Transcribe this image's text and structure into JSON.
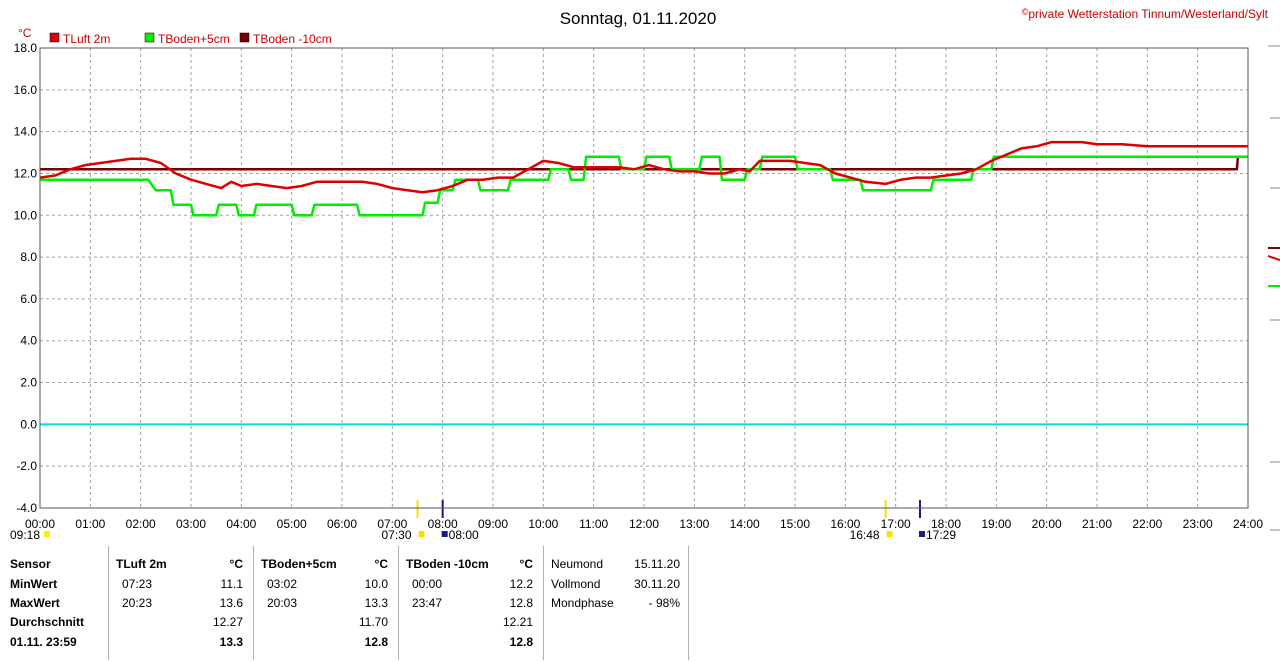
{
  "title": "Sonntag, 01.11.2020",
  "copyright_symbol": "©",
  "copyright": "private Wetterstation Tinnum/Westerland/Sylt",
  "chart_data": {
    "type": "line",
    "ylabel": "°C",
    "ylim": [
      -4,
      18
    ],
    "yticks": [
      "18.0",
      "16.0",
      "14.0",
      "12.0",
      "10.0",
      "8.0",
      "6.0",
      "4.0",
      "2.0",
      "0.0",
      "-2.0",
      "-4.0"
    ],
    "xlim": [
      0,
      24
    ],
    "xticks": [
      "00:00",
      "01:00",
      "02:00",
      "03:00",
      "04:00",
      "05:00",
      "06:00",
      "07:00",
      "08:00",
      "09:00",
      "10:00",
      "11:00",
      "12:00",
      "13:00",
      "14:00",
      "15:00",
      "16:00",
      "17:00",
      "18:00",
      "19:00",
      "20:00",
      "21:00",
      "22:00",
      "23:00",
      "24:00"
    ],
    "grid": true,
    "legend_position": "top-left",
    "zero_line_color": "#00dddd",
    "series": [
      {
        "name": "TLuft 2m",
        "color": "#dd0000",
        "x": [
          0,
          0.3,
          0.6,
          0.9,
          1.2,
          1.5,
          1.8,
          2.1,
          2.4,
          2.7,
          3.0,
          3.3,
          3.6,
          3.8,
          4.0,
          4.3,
          4.6,
          4.9,
          5.2,
          5.5,
          5.8,
          6.1,
          6.4,
          6.7,
          7.0,
          7.3,
          7.6,
          7.9,
          8.2,
          8.5,
          8.8,
          9.1,
          9.4,
          9.7,
          10.0,
          10.3,
          10.6,
          10.9,
          11.2,
          11.5,
          11.8,
          12.1,
          12.4,
          12.7,
          13.0,
          13.3,
          13.6,
          13.9,
          14.1,
          14.3,
          14.6,
          14.9,
          15.2,
          15.5,
          15.8,
          16.1,
          16.4,
          16.8,
          17.1,
          17.4,
          17.7,
          18.0,
          18.3,
          18.6,
          18.9,
          19.2,
          19.5,
          19.8,
          20.1,
          20.4,
          20.7,
          21.0,
          21.5,
          22.0,
          22.5,
          23.0,
          23.5,
          24.0
        ],
        "y": [
          11.8,
          11.9,
          12.2,
          12.4,
          12.5,
          12.6,
          12.7,
          12.7,
          12.5,
          12.0,
          11.7,
          11.5,
          11.3,
          11.6,
          11.4,
          11.5,
          11.4,
          11.3,
          11.4,
          11.6,
          11.6,
          11.6,
          11.6,
          11.5,
          11.3,
          11.2,
          11.1,
          11.2,
          11.4,
          11.7,
          11.7,
          11.8,
          11.8,
          12.2,
          12.6,
          12.5,
          12.3,
          12.3,
          12.3,
          12.3,
          12.2,
          12.4,
          12.2,
          12.1,
          12.1,
          12.0,
          12.0,
          12.2,
          12.1,
          12.6,
          12.6,
          12.6,
          12.5,
          12.4,
          12.0,
          11.8,
          11.6,
          11.5,
          11.7,
          11.8,
          11.8,
          11.9,
          12.0,
          12.2,
          12.6,
          12.9,
          13.2,
          13.3,
          13.5,
          13.5,
          13.5,
          13.4,
          13.4,
          13.3,
          13.3,
          13.3,
          13.3,
          13.3
        ]
      },
      {
        "name": "TBoden+5cm",
        "color": "#00ee00",
        "x": [
          0,
          0.7,
          0.72,
          1.05,
          1.07,
          2.1,
          2.15,
          2.3,
          2.35,
          2.6,
          2.65,
          3.0,
          3.05,
          3.5,
          3.55,
          3.9,
          3.95,
          4.25,
          4.3,
          5.0,
          5.05,
          5.4,
          5.45,
          6.3,
          6.35,
          6.9,
          6.95,
          7.6,
          7.65,
          7.9,
          7.95,
          8.2,
          8.25,
          8.7,
          8.75,
          9.3,
          9.35,
          10.1,
          10.15,
          10.5,
          10.55,
          10.8,
          10.85,
          11.5,
          11.55,
          12.0,
          12.05,
          12.5,
          12.55,
          13.1,
          13.15,
          13.5,
          13.55,
          14.0,
          14.05,
          14.3,
          14.35,
          15.0,
          15.05,
          15.7,
          15.75,
          16.3,
          16.35,
          16.8,
          16.85,
          17.7,
          17.75,
          18.5,
          18.55,
          18.9,
          18.95,
          19.9,
          19.95,
          24.0
        ],
        "y": [
          11.7,
          11.7,
          11.7,
          11.7,
          11.7,
          11.7,
          11.7,
          11.2,
          11.2,
          11.2,
          10.5,
          10.5,
          10.0,
          10.0,
          10.5,
          10.5,
          10.0,
          10.0,
          10.5,
          10.5,
          10.0,
          10.0,
          10.5,
          10.5,
          10.0,
          10.0,
          10.0,
          10.0,
          10.6,
          10.6,
          11.2,
          11.2,
          11.7,
          11.7,
          11.2,
          11.2,
          11.7,
          11.7,
          12.2,
          12.2,
          11.7,
          11.7,
          12.8,
          12.8,
          12.2,
          12.2,
          12.8,
          12.8,
          12.2,
          12.2,
          12.8,
          12.8,
          11.7,
          11.7,
          12.2,
          12.2,
          12.8,
          12.8,
          12.2,
          12.2,
          11.7,
          11.7,
          11.2,
          11.2,
          11.2,
          11.2,
          11.7,
          11.7,
          12.2,
          12.2,
          12.8,
          12.8,
          12.8,
          12.8
        ]
      },
      {
        "name": "TBoden -10cm",
        "color": "#7a0000",
        "x": [
          0,
          1,
          2,
          3,
          4,
          5,
          6,
          7,
          8,
          9,
          10,
          11,
          12,
          13,
          14,
          15,
          16,
          17,
          18,
          19,
          20,
          21,
          22,
          23,
          23.78,
          23.8,
          24.0
        ],
        "y": [
          12.2,
          12.2,
          12.2,
          12.2,
          12.2,
          12.2,
          12.2,
          12.2,
          12.2,
          12.2,
          12.2,
          12.2,
          12.2,
          12.2,
          12.2,
          12.2,
          12.2,
          12.2,
          12.2,
          12.2,
          12.2,
          12.2,
          12.2,
          12.2,
          12.2,
          12.8,
          12.8
        ]
      }
    ],
    "sun_moon_markers": [
      "09:18",
      "07:30",
      "08:00",
      "16:48",
      "17:29"
    ]
  },
  "table": {
    "sensor": {
      "header": "Sensor",
      "min": "MinWert",
      "max": "MaxWert",
      "avg": "Durchschnitt",
      "now": "01.11. 23:59"
    },
    "tluft": {
      "header": "TLuft 2m",
      "unit": "°C",
      "min_time": "07:23",
      "min": "11.1",
      "max_time": "20:23",
      "max": "13.6",
      "avg": "12.27",
      "now": "13.3"
    },
    "tb5": {
      "header": "TBoden+5cm",
      "unit": "°C",
      "min_time": "03:02",
      "min": "10.0",
      "max_time": "20:03",
      "max": "13.3",
      "avg": "11.70",
      "now": "12.8"
    },
    "tb10": {
      "header": "TBoden -10cm",
      "unit": "°C",
      "min_time": "00:00",
      "min": "12.2",
      "max_time": "23:47",
      "max": "12.8",
      "avg": "12.21",
      "now": "12.8"
    },
    "moon": {
      "neumond_label": "Neumond",
      "neumond": "15.11.20",
      "vollmond_label": "Vollmond",
      "vollmond": "30.11.20",
      "phase_label": "Mondphase",
      "phase": "- 98%"
    }
  }
}
